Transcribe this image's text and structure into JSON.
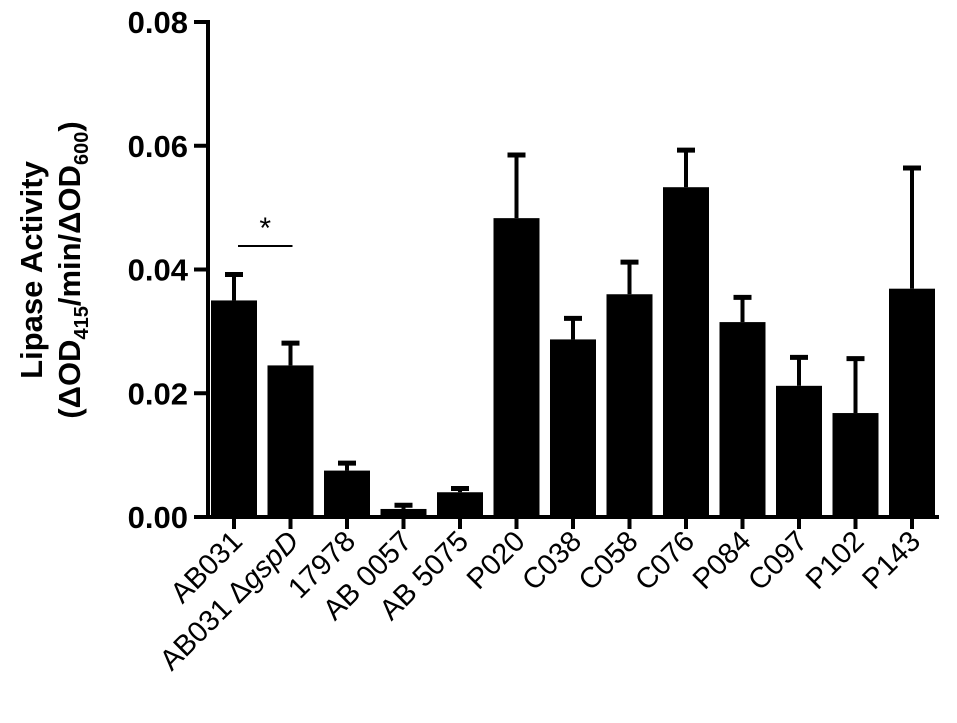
{
  "chart_data": {
    "type": "bar",
    "categories": [
      "AB031",
      "AB031 ΔgspD",
      "17978",
      "AB 0057",
      "AB 5075",
      "P020",
      "C038",
      "C058",
      "C076",
      "P084",
      "C097",
      "P102",
      "P143"
    ],
    "category_label_parts": [
      [
        {
          "t": "AB031",
          "i": false
        }
      ],
      [
        {
          "t": "AB031 Δ",
          "i": false
        },
        {
          "t": "gspD",
          "i": true
        }
      ],
      [
        {
          "t": "17978",
          "i": false
        }
      ],
      [
        {
          "t": "AB 0057",
          "i": false
        }
      ],
      [
        {
          "t": "AB 5075",
          "i": false
        }
      ],
      [
        {
          "t": "P020",
          "i": false
        }
      ],
      [
        {
          "t": "C038",
          "i": false
        }
      ],
      [
        {
          "t": "C058",
          "i": false
        }
      ],
      [
        {
          "t": "C076",
          "i": false
        }
      ],
      [
        {
          "t": "P084",
          "i": false
        }
      ],
      [
        {
          "t": "C097",
          "i": false
        }
      ],
      [
        {
          "t": "P102",
          "i": false
        }
      ],
      [
        {
          "t": "P143",
          "i": false
        }
      ]
    ],
    "values": [
      0.035,
      0.0245,
      0.0075,
      0.0013,
      0.004,
      0.0483,
      0.0287,
      0.036,
      0.0533,
      0.0315,
      0.0212,
      0.0168,
      0.0369
    ],
    "error_upper": [
      0.0042,
      0.0036,
      0.0012,
      0.0006,
      0.0006,
      0.0102,
      0.0034,
      0.0052,
      0.006,
      0.004,
      0.0046,
      0.0088,
      0.0195
    ],
    "ylabel_line1": "Lipase Activity",
    "ylabel_line2_parts": [
      {
        "t": "(ΔOD",
        "sub": false
      },
      {
        "t": "415",
        "sub": true
      },
      {
        "t": "/min/ΔOD",
        "sub": false
      },
      {
        "t": "600",
        "sub": true
      },
      {
        "t": ")",
        "sub": false
      }
    ],
    "ylim": [
      0,
      0.08
    ],
    "yticks": [
      0.0,
      0.02,
      0.04,
      0.06,
      0.08
    ],
    "ytick_labels": [
      "0.00",
      "0.02",
      "0.04",
      "0.06",
      "0.08"
    ],
    "grid": false,
    "legend": "none",
    "annotations": [
      {
        "text": "*",
        "from_index": 0,
        "to_index": 1,
        "y": 0.0438
      }
    ],
    "bar_color": "#000000"
  }
}
